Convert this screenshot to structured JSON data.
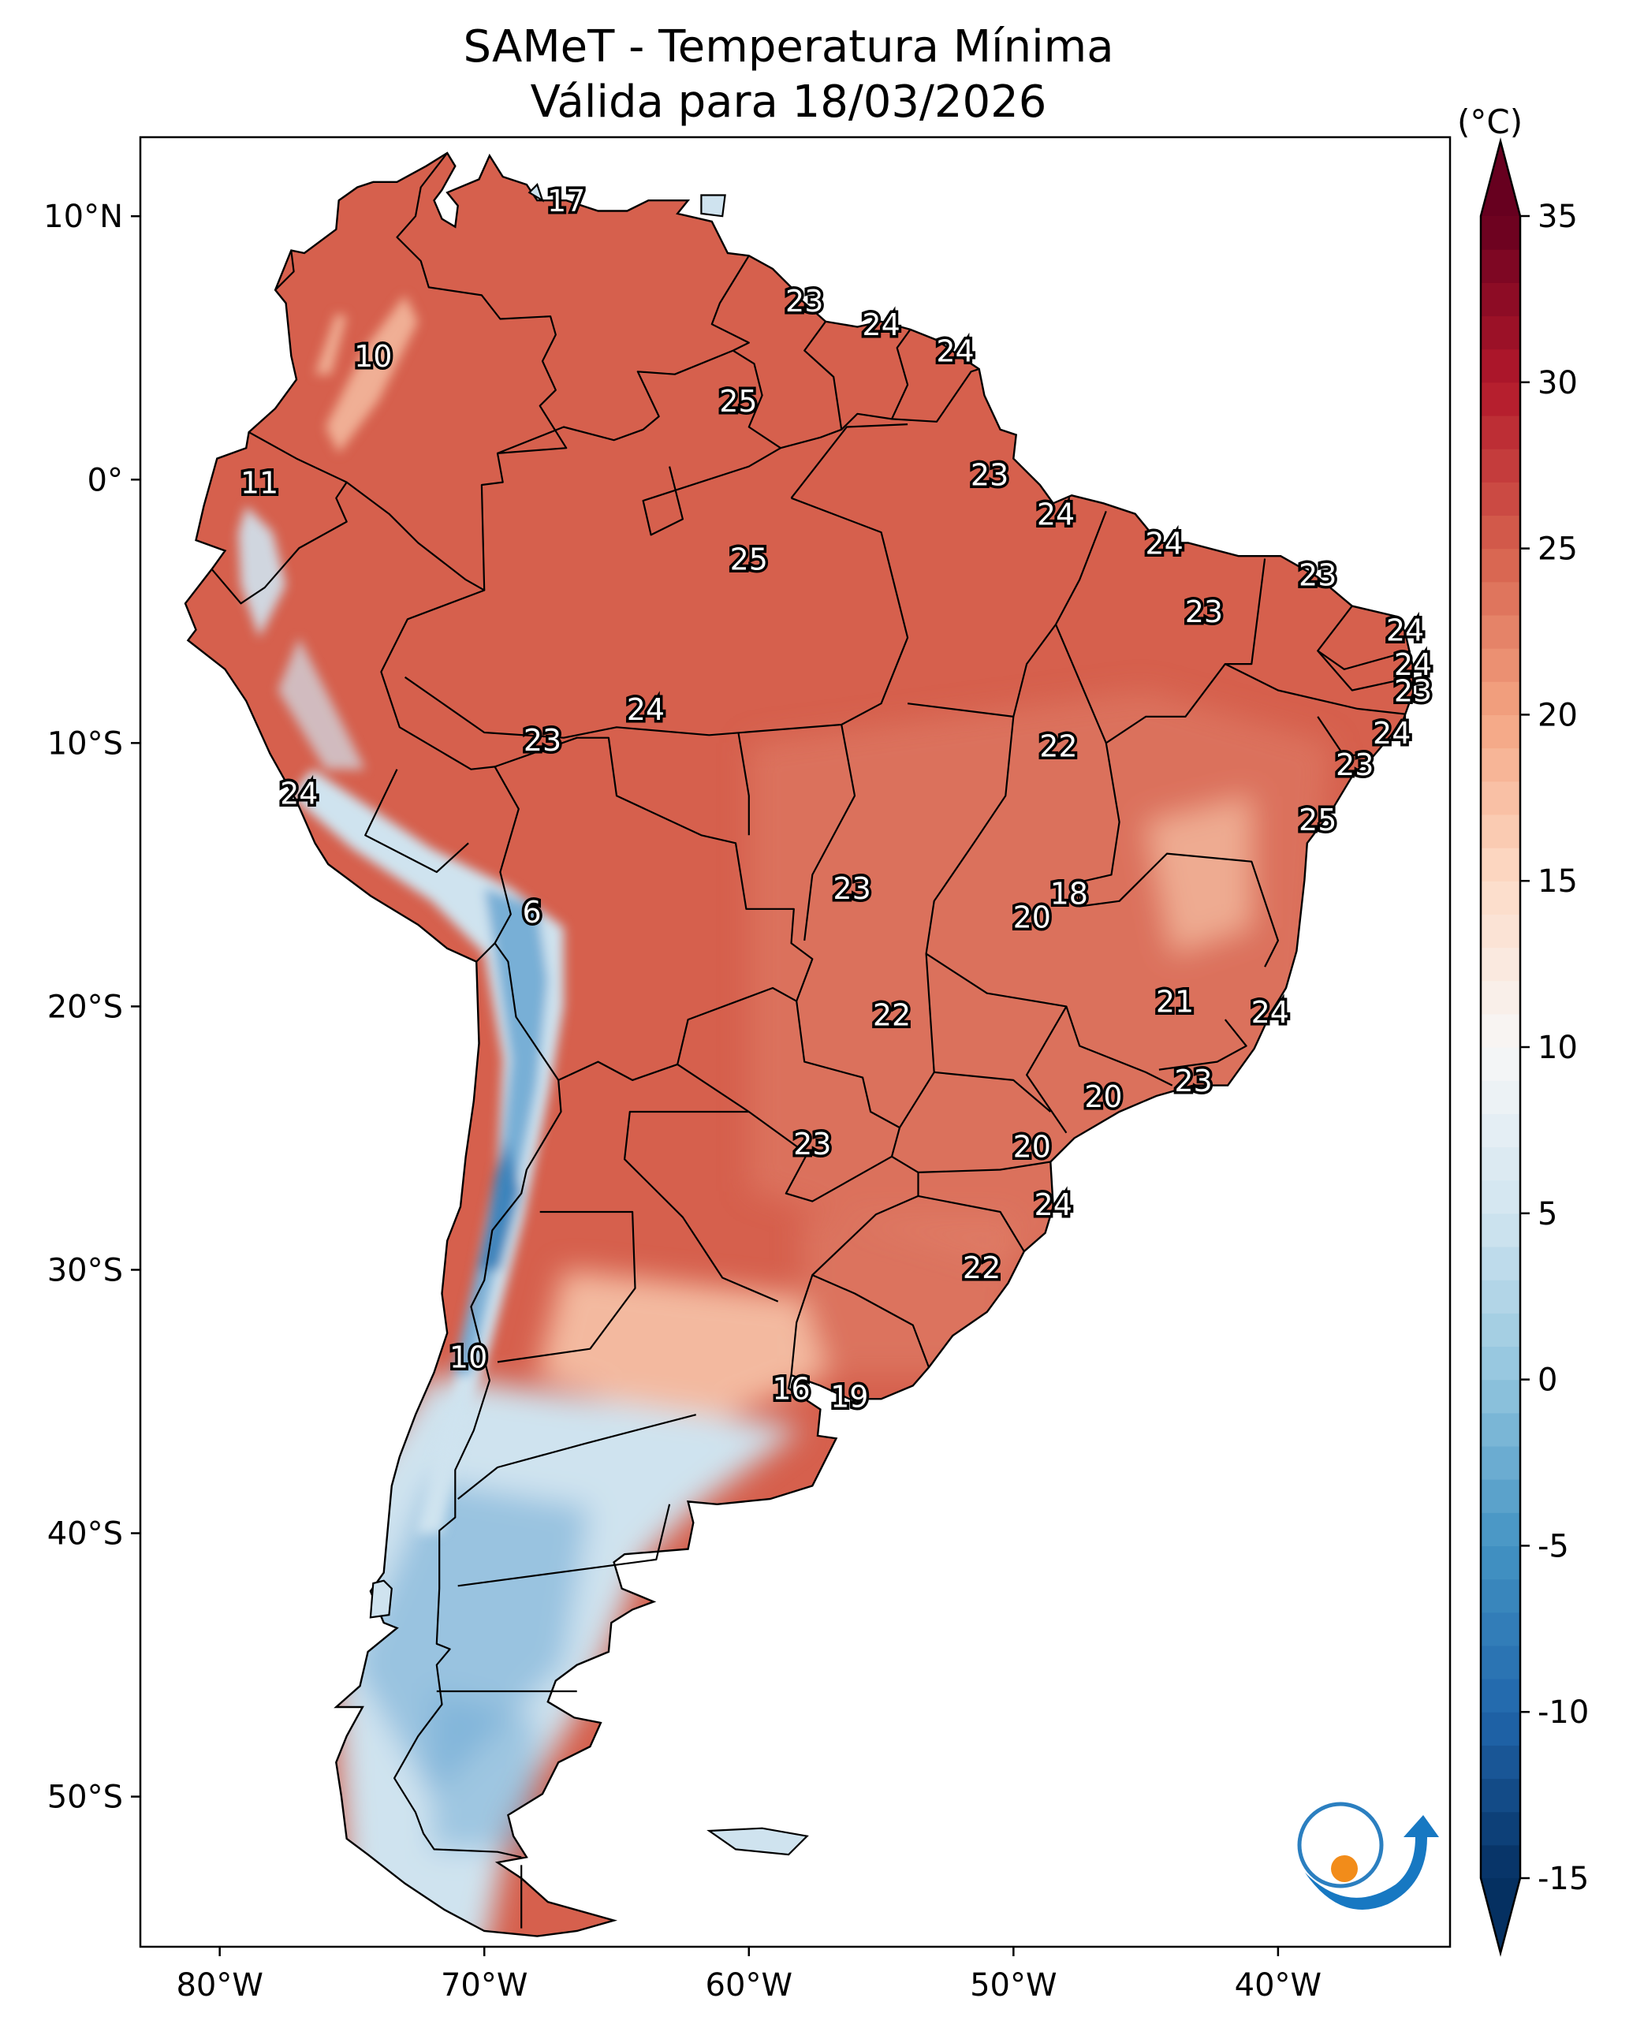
{
  "title": {
    "line1": "SAMeT - Temperatura Mínima",
    "line2": "Válida para 18/03/2026"
  },
  "colorbar": {
    "unit": "(°C)",
    "ticks": [
      "35",
      "30",
      "25",
      "20",
      "15",
      "10",
      "5",
      "0",
      "-5",
      "-10",
      "-15"
    ],
    "tick_values": [
      35,
      30,
      25,
      20,
      15,
      10,
      5,
      0,
      -5,
      -10,
      -15
    ],
    "range": [
      -15,
      35
    ],
    "extend": "both",
    "colormap": "RdBu_r",
    "colors": [
      "#053061",
      "#2166ac",
      "#4393c3",
      "#92c5de",
      "#d1e5f0",
      "#f7f7f7",
      "#fddbc7",
      "#f4a582",
      "#d6604d",
      "#b2182b",
      "#67001f"
    ]
  },
  "axes": {
    "lon_labels": [
      "80°W",
      "70°W",
      "60°W",
      "50°W",
      "40°W"
    ],
    "lon_values": [
      -80,
      -70,
      -60,
      -50,
      -40
    ],
    "lat_labels": [
      "10°N",
      "0°",
      "10°S",
      "20°S",
      "30°S",
      "40°S",
      "50°S"
    ],
    "lat_values": [
      10,
      0,
      -10,
      -20,
      -30,
      -40,
      -50
    ],
    "extent": {
      "lon": [
        -83,
        -33.5
      ],
      "lat": [
        -55.7,
        13
      ]
    }
  },
  "map_colors": {
    "tropics": "#d6604d",
    "warm": "#e0806a",
    "mild": "#f6c3a8",
    "cool": "#cfe3ef",
    "cold": "#6ea9d3",
    "coldest": "#2f79b5",
    "border": "#000000"
  },
  "station_values": [
    {
      "lon": -66.9,
      "lat": 10.5,
      "value": "17"
    },
    {
      "lon": -57.9,
      "lat": 6.7,
      "value": "23"
    },
    {
      "lon": -55.0,
      "lat": 5.8,
      "value": "24"
    },
    {
      "lon": -52.2,
      "lat": 4.8,
      "value": "24"
    },
    {
      "lon": -74.2,
      "lat": 4.6,
      "value": "10"
    },
    {
      "lon": -60.4,
      "lat": 2.9,
      "value": "25"
    },
    {
      "lon": -50.9,
      "lat": 0.1,
      "value": "23"
    },
    {
      "lon": -78.5,
      "lat": -0.2,
      "value": "11"
    },
    {
      "lon": -48.4,
      "lat": -1.4,
      "value": "24"
    },
    {
      "lon": -60.0,
      "lat": -3.1,
      "value": "25"
    },
    {
      "lon": -44.3,
      "lat": -2.5,
      "value": "24"
    },
    {
      "lon": -38.5,
      "lat": -3.7,
      "value": "23"
    },
    {
      "lon": -42.8,
      "lat": -5.1,
      "value": "23"
    },
    {
      "lon": -35.2,
      "lat": -5.8,
      "value": "24"
    },
    {
      "lon": -34.9,
      "lat": -7.1,
      "value": "24"
    },
    {
      "lon": -34.9,
      "lat": -8.1,
      "value": "23"
    },
    {
      "lon": -63.9,
      "lat": -8.8,
      "value": "24"
    },
    {
      "lon": -67.8,
      "lat": -9.97,
      "value": "23"
    },
    {
      "lon": -48.3,
      "lat": -10.2,
      "value": "22"
    },
    {
      "lon": -35.7,
      "lat": -9.7,
      "value": "24"
    },
    {
      "lon": -37.1,
      "lat": -10.9,
      "value": "23"
    },
    {
      "lon": -77.0,
      "lat": -12.0,
      "value": "24"
    },
    {
      "lon": -38.5,
      "lat": -13.0,
      "value": "25"
    },
    {
      "lon": -68.2,
      "lat": -16.5,
      "value": "6"
    },
    {
      "lon": -56.1,
      "lat": -15.6,
      "value": "23"
    },
    {
      "lon": -47.9,
      "lat": -15.8,
      "value": "18"
    },
    {
      "lon": -49.3,
      "lat": -16.7,
      "value": "20"
    },
    {
      "lon": -43.9,
      "lat": -19.9,
      "value": "21"
    },
    {
      "lon": -40.3,
      "lat": -20.3,
      "value": "24"
    },
    {
      "lon": -54.6,
      "lat": -20.4,
      "value": "22"
    },
    {
      "lon": -43.2,
      "lat": -22.9,
      "value": "23"
    },
    {
      "lon": -46.6,
      "lat": -23.5,
      "value": "20"
    },
    {
      "lon": -57.6,
      "lat": -25.3,
      "value": "23"
    },
    {
      "lon": -49.3,
      "lat": -25.4,
      "value": "20"
    },
    {
      "lon": -48.5,
      "lat": -27.6,
      "value": "24"
    },
    {
      "lon": -51.2,
      "lat": -30.0,
      "value": "22"
    },
    {
      "lon": -70.6,
      "lat": -33.4,
      "value": "10"
    },
    {
      "lon": -58.4,
      "lat": -34.6,
      "value": "16"
    },
    {
      "lon": -56.2,
      "lat": -34.9,
      "value": "19"
    }
  ]
}
